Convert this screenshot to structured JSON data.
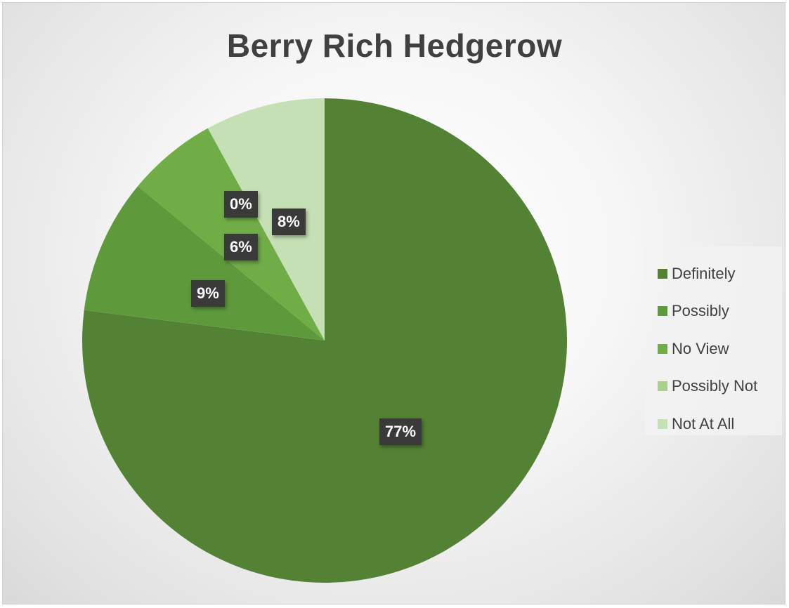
{
  "chart_data": {
    "type": "pie",
    "title": "Berry Rich Hedgerow",
    "categories": [
      "Definitely",
      "Possibly",
      "No View",
      "Possibly Not",
      "Not At All"
    ],
    "values": [
      77,
      9,
      6,
      0,
      8
    ],
    "data_labels": [
      "77%",
      "9%",
      "6%",
      "0%",
      "8%"
    ],
    "colors": [
      "#548235",
      "#5e9a3b",
      "#70ad47",
      "#a9d18e",
      "#c5e0b4"
    ],
    "legend": "right"
  }
}
